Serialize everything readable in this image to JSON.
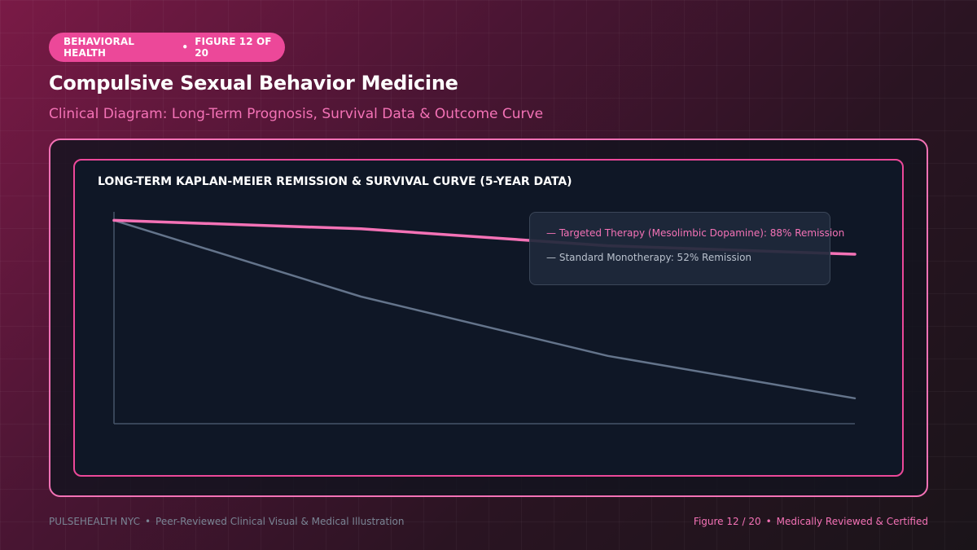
{
  "header": {
    "category": "BEHAVIORAL HEALTH",
    "figure_label": "FIGURE 12 OF 20",
    "title": "Compulsive Sexual Behavior Medicine",
    "subtitle": "Clinical Diagram: Long-Term Prognosis, Survival Data & Outcome Curve"
  },
  "footer": {
    "brand": "PULSEHEALTH NYC",
    "description": "Peer-Reviewed Clinical Visual & Medical Illustration",
    "figure": "Figure 12 / 20",
    "certification": "Medically Reviewed & Certified"
  },
  "colors": {
    "accent": "#ec4899",
    "series_targeted": "#f472b6",
    "series_standard": "#64748b"
  },
  "chart_data": {
    "type": "line",
    "title": "LONG-TERM KAPLAN-MEIER REMISSION & SURVIVAL CURVE (5-YEAR DATA)",
    "xlabel": "",
    "ylabel": "",
    "x": [
      0,
      1,
      2,
      3
    ],
    "ylim": [
      0,
      100
    ],
    "grid": false,
    "legend_position": "top-right",
    "series": [
      {
        "name": "Targeted Therapy (Mesolimbic Dopamine): 88% Remission",
        "color": "#f472b6",
        "values": [
          96,
          92,
          84,
          80
        ]
      },
      {
        "name": "Standard Monotherapy: 52% Remission",
        "color": "#64748b",
        "values": [
          96,
          60,
          32,
          12
        ]
      }
    ]
  }
}
